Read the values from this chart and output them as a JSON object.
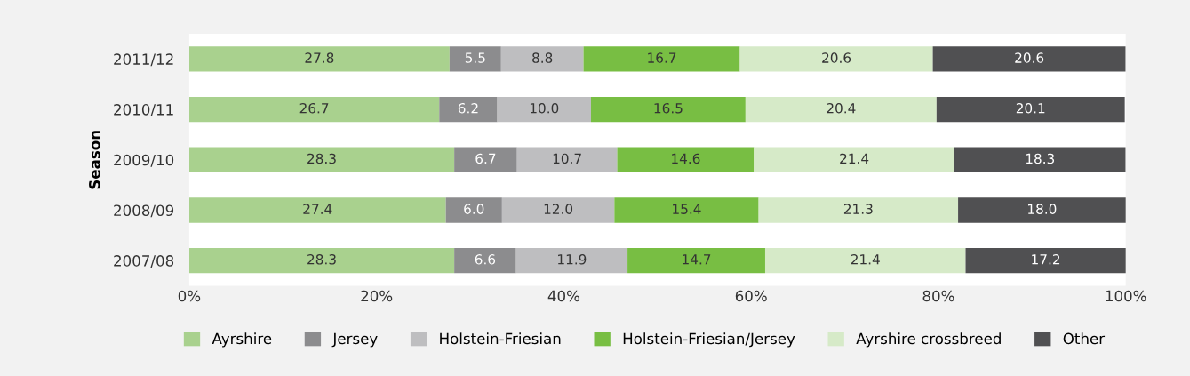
{
  "chart_data": {
    "type": "bar",
    "orientation": "horizontal",
    "stacked": true,
    "ylabel": "Season",
    "categories": [
      "2011/12",
      "2010/11",
      "2009/10",
      "2008/09",
      "2007/08"
    ],
    "series": [
      {
        "name": "Ayrshire",
        "color": "#a9d18e",
        "values": [
          27.8,
          26.7,
          28.3,
          27.4,
          28.3
        ],
        "value_labels": [
          "27.8",
          "26.7",
          "28.3",
          "27.4",
          "28.3"
        ]
      },
      {
        "name": "Jersey",
        "color": "#8c8c8e",
        "values": [
          5.5,
          6.2,
          6.7,
          6.0,
          6.6
        ],
        "value_labels": [
          "5.5",
          "6.2",
          "6.7",
          "6.0",
          "6.6"
        ]
      },
      {
        "name": "Holstein-Friesian",
        "color": "#bebec0",
        "values": [
          8.8,
          10.0,
          10.7,
          12.0,
          11.9
        ],
        "value_labels": [
          "8.8",
          "10.0",
          "10.7",
          "12.0",
          "11.9"
        ]
      },
      {
        "name": "Holstein-Friesian/Jersey",
        "color": "#78be43",
        "values": [
          16.7,
          16.5,
          14.6,
          15.4,
          14.7
        ],
        "value_labels": [
          "16.7",
          "16.5",
          "14.6",
          "15.4",
          "14.7"
        ]
      },
      {
        "name": "Ayrshire crossbreed",
        "color": "#d6eac8",
        "values": [
          20.6,
          20.4,
          21.4,
          21.3,
          21.4
        ],
        "value_labels": [
          "20.6",
          "20.4",
          "21.4",
          "21.3",
          "21.4"
        ]
      },
      {
        "name": "Other",
        "color": "#505052",
        "values": [
          20.6,
          20.1,
          18.3,
          18.0,
          17.2
        ],
        "value_labels": [
          "20.6",
          "20.1",
          "18.3",
          "18.0",
          "17.2"
        ]
      }
    ],
    "xlim": [
      0,
      100
    ],
    "xticks": [
      {
        "value": 0,
        "label": "0%"
      },
      {
        "value": 20,
        "label": "20%"
      },
      {
        "value": 40,
        "label": "40%"
      },
      {
        "value": 60,
        "label": "60%"
      },
      {
        "value": 80,
        "label": "80%"
      },
      {
        "value": 100,
        "label": "100%"
      }
    ],
    "grid": false,
    "legend": "bottom"
  }
}
